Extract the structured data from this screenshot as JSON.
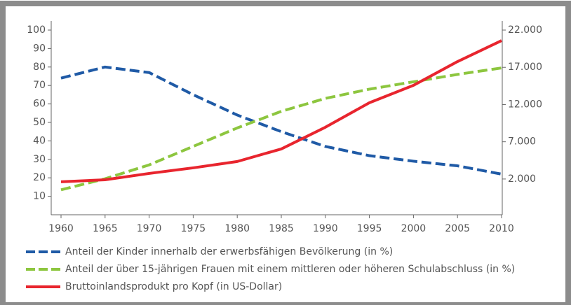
{
  "chart_data": {
    "type": "line",
    "x": [
      1960,
      1965,
      1970,
      1975,
      1980,
      1985,
      1990,
      1995,
      2000,
      2005,
      2010
    ],
    "xlim": [
      1960,
      2010
    ],
    "xticks": [
      1960,
      1965,
      1970,
      1975,
      1980,
      1985,
      1990,
      1995,
      2000,
      2005,
      2010
    ],
    "ylim": [
      0,
      100
    ],
    "yticks": [
      10,
      20,
      30,
      40,
      50,
      60,
      70,
      80,
      90,
      100
    ],
    "y2lim": [
      -2800,
      22000
    ],
    "y2ticks": [
      {
        "value": 2000,
        "label": "2.000"
      },
      {
        "value": 7000,
        "label": "7.000"
      },
      {
        "value": 12000,
        "label": "12.000"
      },
      {
        "value": 17000,
        "label": "17.000"
      },
      {
        "value": 22000,
        "label": "22.000"
      }
    ],
    "legend": "bottom",
    "series": [
      {
        "name": "Anteil der Kinder innerhalb der erwerbsfähigen Bevölkerung (in %)",
        "color": "#1f5aa6",
        "style": "dashed",
        "values": [
          74,
          80,
          77,
          65,
          54,
          45,
          37,
          32,
          29,
          26.5,
          22
        ]
      },
      {
        "name": "Anteil der über 15-jährigen Frauen mit einem mittleren oder höheren Schulabschluss (in %)",
        "color": "#8dc63f",
        "style": "dashed",
        "values": [
          13.5,
          19.5,
          27,
          37,
          47,
          56,
          63,
          68,
          72,
          76,
          79.5
        ]
      },
      {
        "name": "Bruttoinlandsprodukt pro Kopf (in US-Dollar)",
        "color": "#e8252e",
        "style": "solid",
        "axis": "y2",
        "values": [
          1624,
          1900,
          2750,
          3500,
          4350,
          6040,
          8950,
          12240,
          14580,
          17770,
          20590
        ]
      }
    ]
  }
}
